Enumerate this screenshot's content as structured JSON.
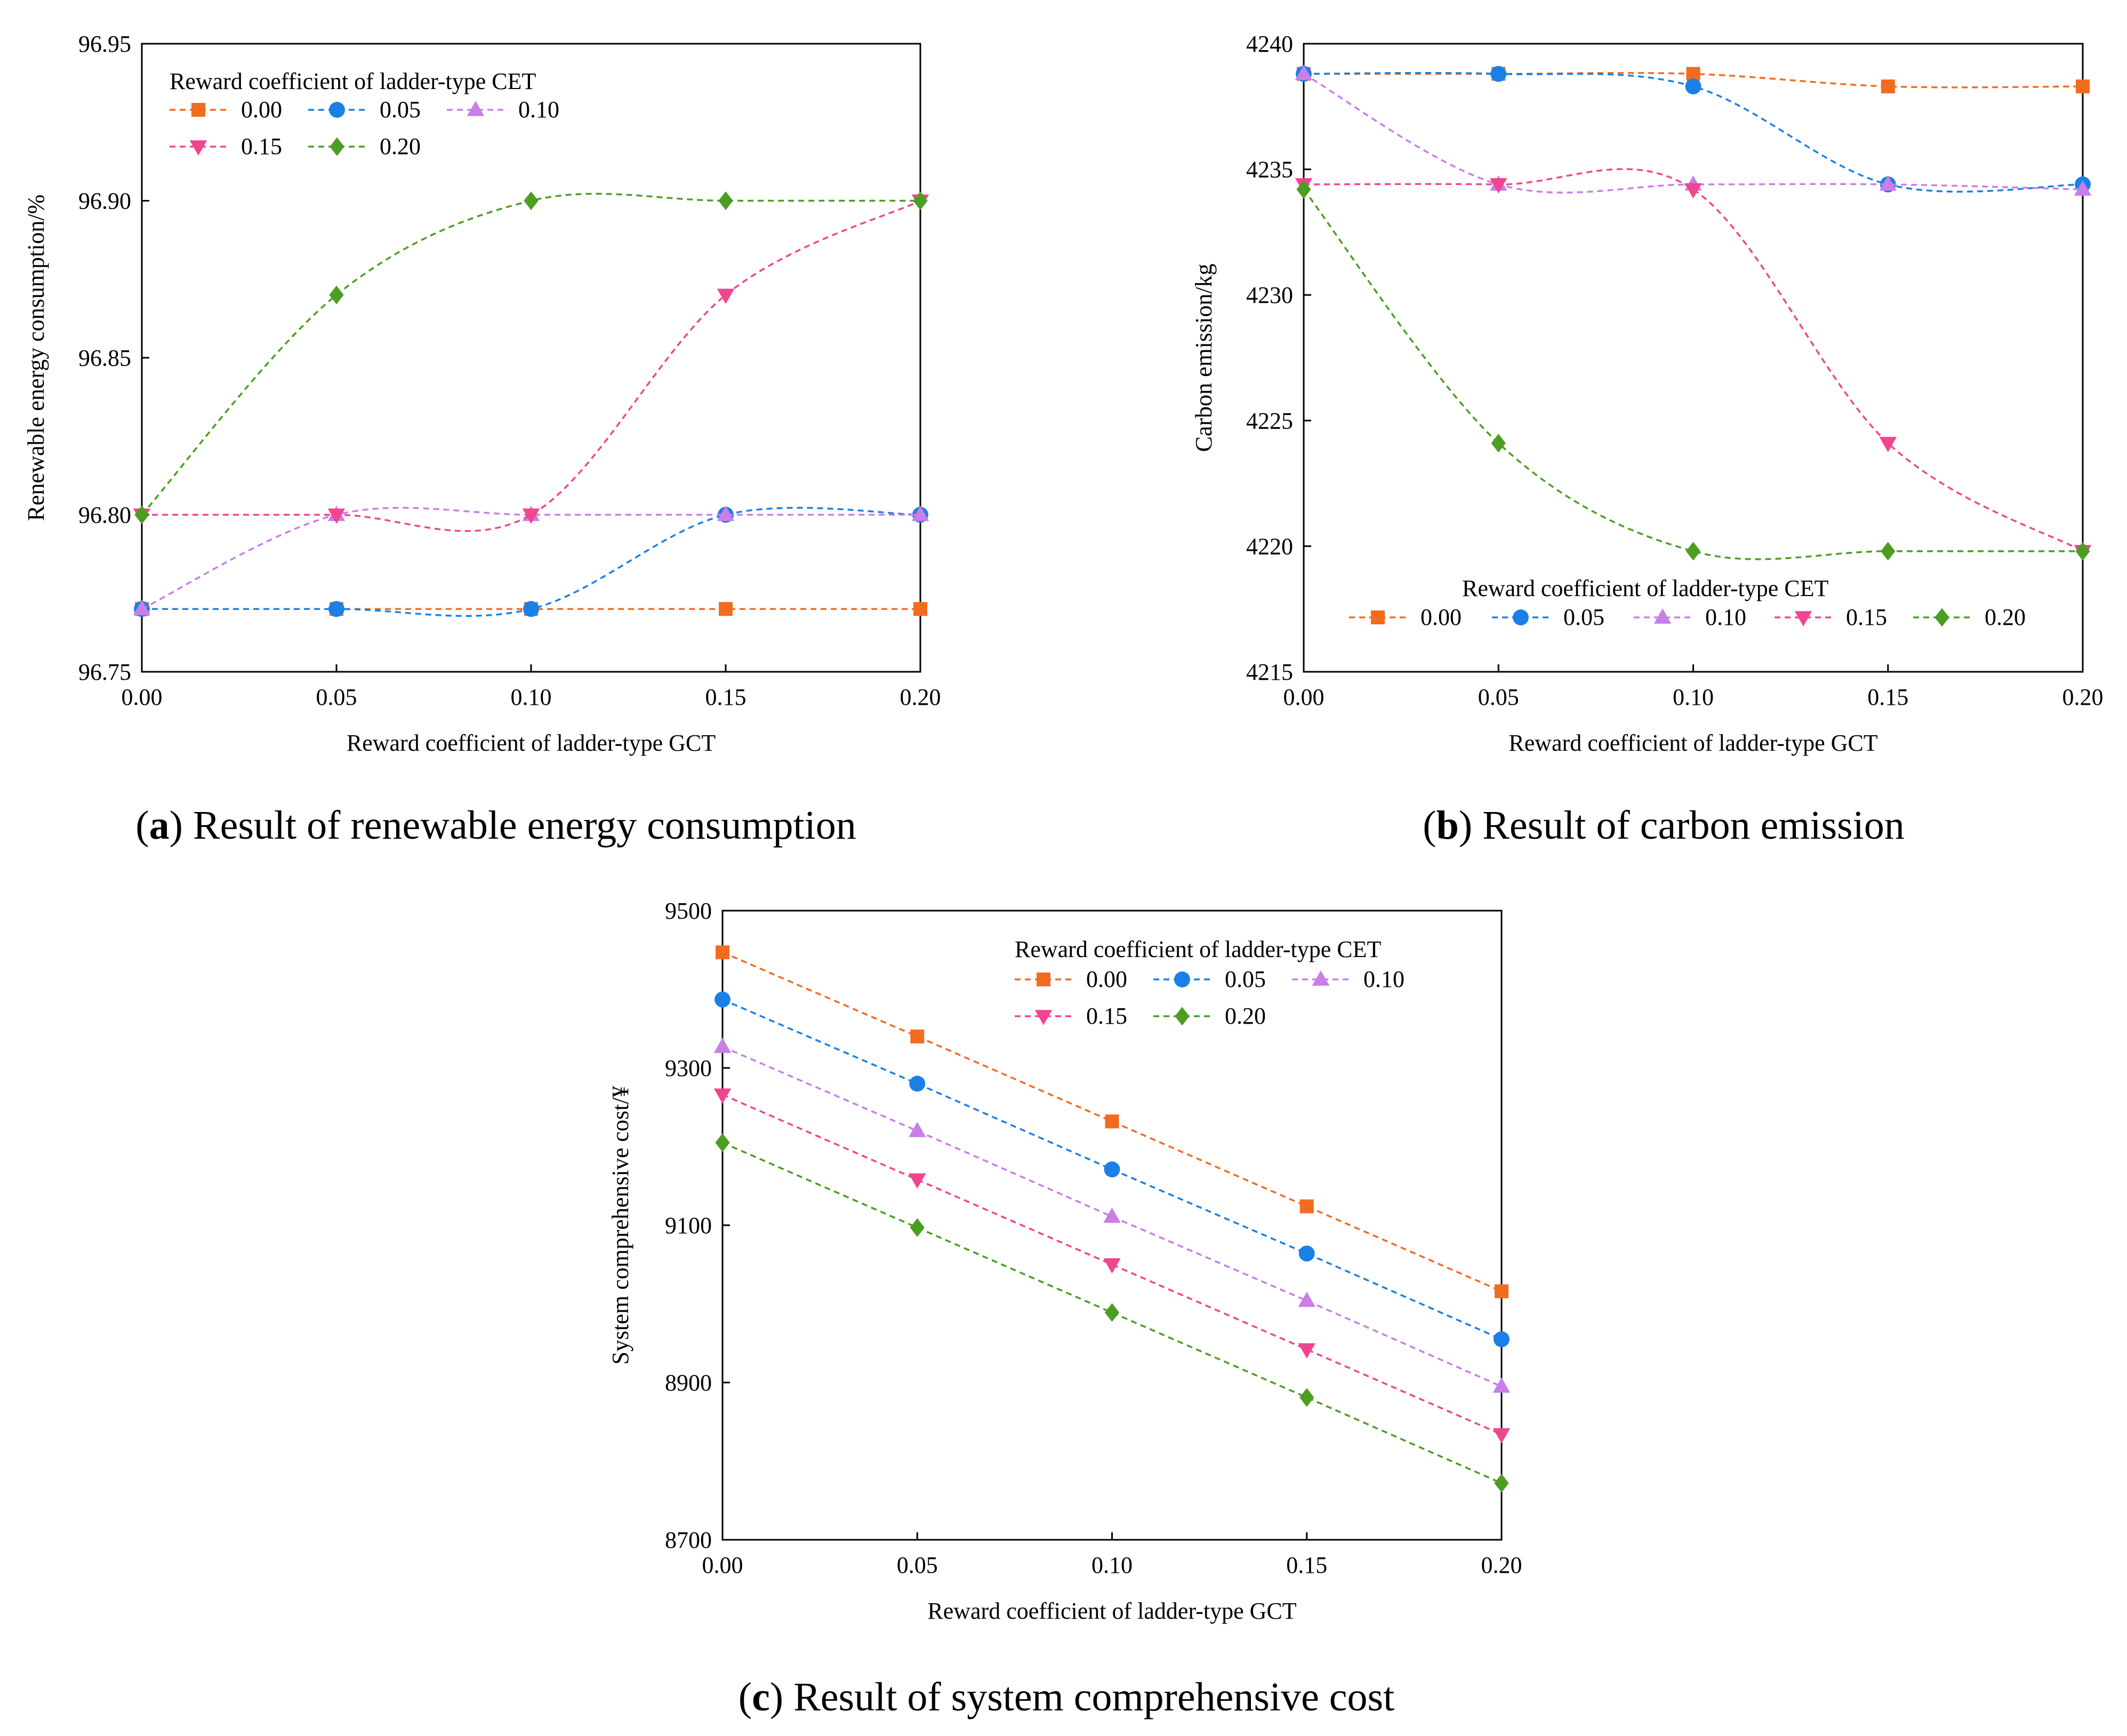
{
  "colors": {
    "s000": "#f26c20",
    "s005": "#1a80e6",
    "s010": "#c97ee8",
    "s015": "#f0458f",
    "s020": "#4c9e22"
  },
  "chart_data": [
    {
      "id": "a",
      "type": "line",
      "curve": "smooth",
      "caption_tag": "a",
      "caption_text": "Result of renewable energy consumption",
      "xlabel": "Reward coefficient of ladder-type GCT",
      "ylabel": "Renewable energy consumption/%",
      "xlim": [
        0,
        0.2
      ],
      "ylim": [
        96.75,
        96.95
      ],
      "x": [
        0.0,
        0.05,
        0.1,
        0.15,
        0.2
      ],
      "xticks": [
        "0.00",
        "0.05",
        "0.10",
        "0.15",
        "0.20"
      ],
      "yticks": [
        "96.75",
        "96.80",
        "96.85",
        "96.90",
        "96.95"
      ],
      "yticks_values": [
        96.75,
        96.8,
        96.85,
        96.9,
        96.95
      ],
      "legend_title": "Reward coefficient of ladder-type CET",
      "legend_position": "top-left",
      "series": [
        {
          "name": "0.00",
          "marker": "square",
          "color": "#f26c20",
          "values": [
            96.77,
            96.77,
            96.77,
            96.77,
            96.77
          ]
        },
        {
          "name": "0.05",
          "marker": "circle",
          "color": "#1a80e6",
          "values": [
            96.77,
            96.77,
            96.77,
            96.8,
            96.8
          ]
        },
        {
          "name": "0.10",
          "marker": "triangle-up",
          "color": "#c97ee8",
          "values": [
            96.77,
            96.8,
            96.8,
            96.8,
            96.8
          ]
        },
        {
          "name": "0.15",
          "marker": "triangle-down",
          "color": "#f0458f",
          "values": [
            96.8,
            96.8,
            96.8,
            96.87,
            96.9
          ]
        },
        {
          "name": "0.20",
          "marker": "diamond",
          "color": "#4c9e22",
          "values": [
            96.8,
            96.87,
            96.9,
            96.9,
            96.9
          ]
        }
      ]
    },
    {
      "id": "b",
      "type": "line",
      "curve": "smooth",
      "caption_tag": "b",
      "caption_text": "Result of carbon emission",
      "xlabel": "Reward coefficient of ladder-type GCT",
      "ylabel": "Carbon emission/kg",
      "xlim": [
        0,
        0.2
      ],
      "ylim": [
        4215,
        4240
      ],
      "x": [
        0.0,
        0.05,
        0.1,
        0.15,
        0.2
      ],
      "xticks": [
        "0.00",
        "0.05",
        "0.10",
        "0.15",
        "0.20"
      ],
      "yticks": [
        "4215",
        "4220",
        "4225",
        "4230",
        "4235",
        "4240"
      ],
      "yticks_values": [
        4215,
        4220,
        4225,
        4230,
        4235,
        4240
      ],
      "legend_title": "Reward coefficient of ladder-type CET",
      "legend_position": "bottom",
      "series": [
        {
          "name": "0.00",
          "marker": "square",
          "color": "#f26c20",
          "values": [
            4238.8,
            4238.8,
            4238.8,
            4238.3,
            4238.3
          ]
        },
        {
          "name": "0.05",
          "marker": "circle",
          "color": "#1a80e6",
          "values": [
            4238.8,
            4238.8,
            4238.3,
            4234.4,
            4234.4
          ]
        },
        {
          "name": "0.10",
          "marker": "triangle-up",
          "color": "#c97ee8",
          "values": [
            4238.8,
            4234.4,
            4234.4,
            4234.4,
            4234.2
          ]
        },
        {
          "name": "0.15",
          "marker": "triangle-down",
          "color": "#f0458f",
          "values": [
            4234.4,
            4234.4,
            4234.2,
            4224.1,
            4219.8
          ]
        },
        {
          "name": "0.20",
          "marker": "diamond",
          "color": "#4c9e22",
          "values": [
            4234.2,
            4224.1,
            4219.8,
            4219.8,
            4219.8
          ]
        }
      ]
    },
    {
      "id": "c",
      "type": "line",
      "curve": "straight",
      "caption_tag": "c",
      "caption_text": "Result of system comprehensive cost",
      "xlabel": "Reward coefficient of ladder-type GCT",
      "ylabel": "System comprehensive cost/¥",
      "xlim": [
        0,
        0.2
      ],
      "ylim": [
        8700,
        9500
      ],
      "x": [
        0.0,
        0.05,
        0.1,
        0.15,
        0.2
      ],
      "xticks": [
        "0.00",
        "0.05",
        "0.10",
        "0.15",
        "0.20"
      ],
      "yticks": [
        "8700",
        "8900",
        "9100",
        "9300",
        "9500"
      ],
      "yticks_values": [
        8700,
        8900,
        9100,
        9300,
        9500
      ],
      "legend_title": "Reward coefficient of ladder-type CET",
      "legend_position": "top-right",
      "series": [
        {
          "name": "0.00",
          "marker": "square",
          "color": "#f26c20",
          "values": [
            9447,
            9340,
            9232,
            9124,
            9016
          ]
        },
        {
          "name": "0.05",
          "marker": "circle",
          "color": "#1a80e6",
          "values": [
            9387,
            9280,
            9171,
            9064,
            8955
          ]
        },
        {
          "name": "0.10",
          "marker": "triangle-up",
          "color": "#c97ee8",
          "values": [
            9327,
            9220,
            9111,
            9004,
            8895
          ]
        },
        {
          "name": "0.15",
          "marker": "triangle-down",
          "color": "#f0458f",
          "values": [
            9266,
            9158,
            9050,
            8942,
            8834
          ]
        },
        {
          "name": "0.20",
          "marker": "diamond",
          "color": "#4c9e22",
          "values": [
            9205,
            9097,
            8989,
            8881,
            8772
          ]
        }
      ]
    }
  ]
}
